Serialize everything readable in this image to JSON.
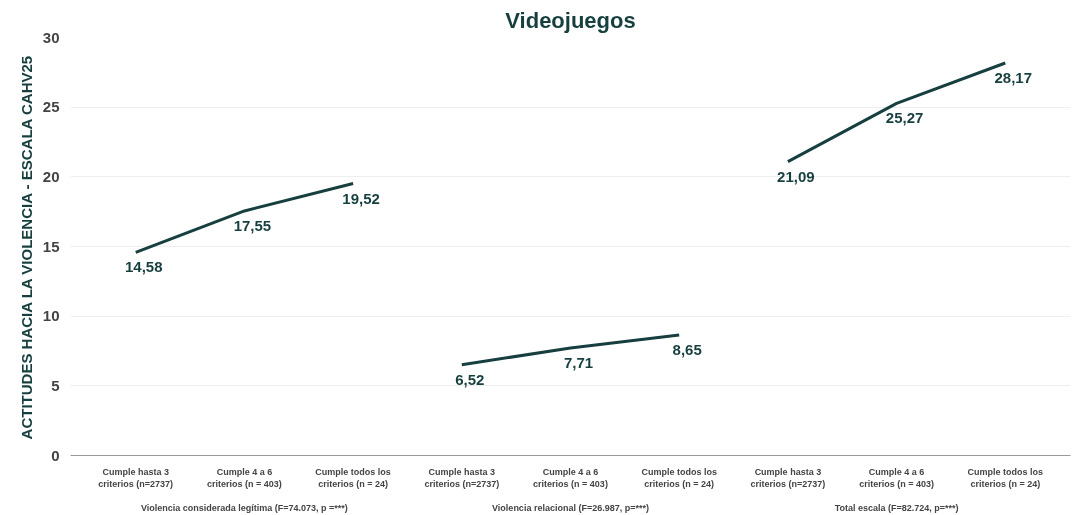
{
  "chart_data": {
    "type": "line",
    "title": "Videojuegos",
    "ylabel": "ACTITUDES HACIA LA VIOLENCIA - ESCALA CAHV25",
    "categories": [
      "Cumple hasta 3\ncriterios (n=2737)",
      "Cumple 4 a 6\ncriterios (n = 403)",
      "Cumple todos los\ncriterios (n = 24)",
      "Cumple hasta 3\ncriterios (n=2737)",
      "Cumple 4 a 6\ncriterios (n = 403)",
      "Cumple todos los\ncriterios (n = 24)",
      "Cumple hasta 3\ncriterios (n=2737)",
      "Cumple 4 a 6\ncriterios (n = 403)",
      "Cumple todos los\ncriterios (n = 24)"
    ],
    "series": [
      {
        "color": "#173f3f",
        "values": [
          14.58,
          17.55,
          19.52,
          null,
          null,
          null,
          null,
          null,
          null
        ],
        "value_labels": [
          "14,58",
          "17,55",
          "19,52",
          null,
          null,
          null,
          null,
          null,
          null
        ]
      },
      {
        "color": "#173f3f",
        "values": [
          null,
          null,
          null,
          6.52,
          7.71,
          8.65,
          null,
          null,
          null
        ],
        "value_labels": [
          null,
          null,
          null,
          "6,52",
          "7,71",
          "8,65",
          null,
          null,
          null
        ]
      },
      {
        "color": "#173f3f",
        "values": [
          null,
          null,
          null,
          null,
          null,
          null,
          21.09,
          25.27,
          28.17
        ],
        "value_labels": [
          null,
          null,
          null,
          null,
          null,
          null,
          "21,09",
          "25,27",
          "28,17"
        ]
      }
    ],
    "annotations": [
      "Violencia considerada legítima (F=74.073, p =***)",
      "Violencia relacional (F=26.987, p=***)",
      "Total escala (F=82.724, p=***)"
    ],
    "ylim": [
      0,
      30
    ],
    "yticks": [
      0,
      5,
      10,
      15,
      20,
      25,
      30
    ],
    "grid": "y",
    "marker": "none",
    "line_style": "solid"
  }
}
